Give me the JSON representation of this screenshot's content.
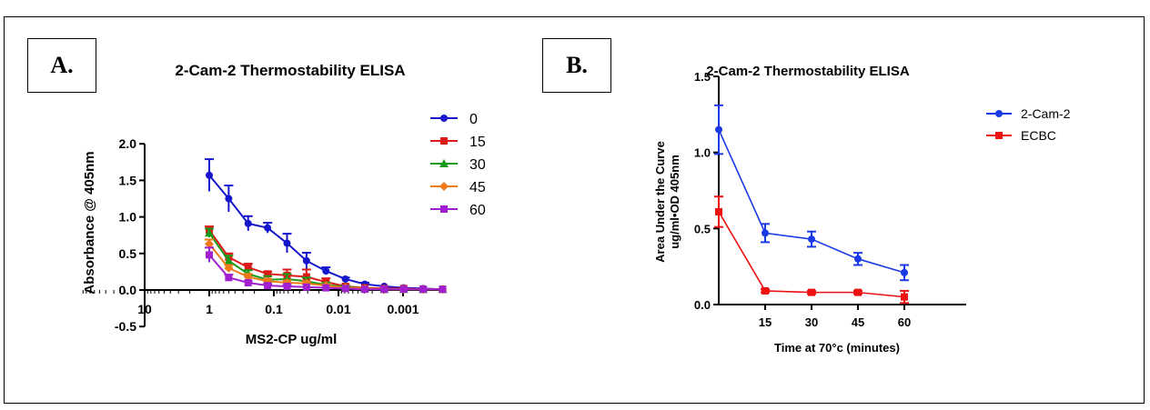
{
  "panels": {
    "a_label": "A.",
    "b_label": "B."
  },
  "chart_data": [
    {
      "type": "line",
      "title": "2-Cam-2 Thermostability ELISA",
      "xlabel": "MS2-CP ug/ml",
      "ylabel": "Absorbance @ 405nm",
      "x_scale": "log, reversed",
      "xlim": [
        10,
        0.0002
      ],
      "ylim": [
        -0.5,
        2.0
      ],
      "x_tick_labels": [
        "10",
        "1",
        "0.1",
        "0.01",
        "0.001"
      ],
      "y_tick_labels": [
        "2.0",
        "1.5",
        "1.0",
        "0.5",
        "0.0",
        "-0.5"
      ],
      "legend_position": "right",
      "x": [
        1,
        0.5,
        0.25,
        0.125,
        0.0625,
        0.03125,
        0.015625,
        0.0078125,
        0.00390625,
        0.001953125,
        0.0009765625,
        0.00048828125,
        0.000244140625
      ],
      "series": [
        {
          "name": "0",
          "color": "#1515cc",
          "marker": "circle",
          "values": [
            1.57,
            1.25,
            0.91,
            0.85,
            0.64,
            0.4,
            0.26,
            0.15,
            0.08,
            0.05,
            0.03,
            0.02,
            0.01
          ],
          "errors": [
            0.22,
            0.18,
            0.1,
            0.07,
            0.13,
            0.11,
            0.05,
            0.02,
            0.02,
            0.01,
            0.01,
            0.01,
            0.01
          ]
        },
        {
          "name": "15",
          "color": "#dd1a1a",
          "marker": "square",
          "values": [
            0.82,
            0.45,
            0.31,
            0.22,
            0.2,
            0.18,
            0.11,
            0.05,
            0.03,
            0.02,
            0.02,
            0.01,
            0.01
          ],
          "errors": [
            0.05,
            0.05,
            0.05,
            0.03,
            0.08,
            0.1,
            0.05,
            0.02,
            0.01,
            0.01,
            0.01,
            0.01,
            0.01
          ]
        },
        {
          "name": "30",
          "color": "#1a9a1a",
          "marker": "triangle",
          "values": [
            0.78,
            0.4,
            0.22,
            0.14,
            0.15,
            0.12,
            0.07,
            0.04,
            0.02,
            0.01,
            0.01,
            0.01,
            0.01
          ],
          "errors": [
            0.06,
            0.07,
            0.05,
            0.05,
            0.07,
            0.05,
            0.03,
            0.02,
            0.01,
            0.01,
            0.01,
            0.01,
            0.01
          ]
        },
        {
          "name": "45",
          "color": "#ee7a1a",
          "marker": "diamond",
          "values": [
            0.63,
            0.3,
            0.18,
            0.12,
            0.1,
            0.09,
            0.06,
            0.03,
            0.02,
            0.01,
            0.01,
            0.01,
            0.01
          ],
          "errors": [
            0.06,
            0.04,
            0.04,
            0.03,
            0.03,
            0.03,
            0.02,
            0.01,
            0.01,
            0.01,
            0.01,
            0.01,
            0.01
          ]
        },
        {
          "name": "60",
          "color": "#a020d0",
          "marker": "square",
          "values": [
            0.48,
            0.17,
            0.1,
            0.06,
            0.05,
            0.04,
            0.03,
            0.02,
            0.01,
            0.01,
            0.01,
            0.01,
            0.01
          ],
          "errors": [
            0.1,
            0.04,
            0.02,
            0.02,
            0.02,
            0.01,
            0.01,
            0.01,
            0.01,
            0.01,
            0.01,
            0.01,
            0.01
          ]
        }
      ]
    },
    {
      "type": "line",
      "title": "2-Cam-2 Thermostability ELISA",
      "xlabel": "Time at 70°c (minutes)",
      "ylabel": "Area Under the Curve",
      "ylabel2": "ug/ml•OD 405nm",
      "xlim": [
        0,
        80
      ],
      "ylim": [
        0,
        1.5
      ],
      "x_tick_labels": [
        "15",
        "30",
        "45",
        "60"
      ],
      "y_tick_labels": [
        "1.5",
        "1.0",
        "0.5",
        "0.0"
      ],
      "legend_position": "top-right",
      "x": [
        0,
        15,
        30,
        45,
        60
      ],
      "series": [
        {
          "name": "2-Cam-2",
          "color": "#1a3ae6",
          "marker": "circle",
          "values": [
            1.15,
            0.47,
            0.43,
            0.3,
            0.21
          ],
          "errors": [
            0.16,
            0.06,
            0.05,
            0.04,
            0.05
          ]
        },
        {
          "name": "ECBC",
          "color": "#ee1111",
          "marker": "square",
          "values": [
            0.61,
            0.09,
            0.08,
            0.08,
            0.05
          ],
          "errors": [
            0.1,
            0.01,
            0.01,
            0.01,
            0.04
          ]
        }
      ]
    }
  ]
}
